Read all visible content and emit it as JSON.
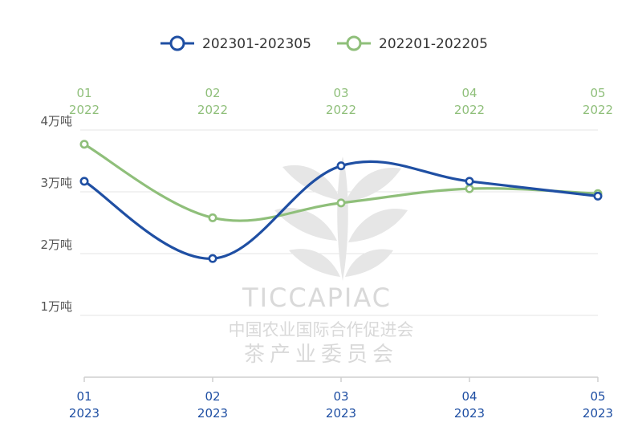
{
  "chart_data": {
    "type": "line",
    "x_bottom": [
      {
        "month": "01",
        "year": "2023"
      },
      {
        "month": "02",
        "year": "2023"
      },
      {
        "month": "03",
        "year": "2023"
      },
      {
        "month": "04",
        "year": "2023"
      },
      {
        "month": "05",
        "year": "2023"
      }
    ],
    "x_top": [
      {
        "month": "01",
        "year": "2022"
      },
      {
        "month": "02",
        "year": "2022"
      },
      {
        "month": "03",
        "year": "2022"
      },
      {
        "month": "04",
        "year": "2022"
      },
      {
        "month": "05",
        "year": "2022"
      }
    ],
    "y_ticks": [
      {
        "value": 1,
        "label": "1万吨"
      },
      {
        "value": 2,
        "label": "2万吨"
      },
      {
        "value": 3,
        "label": "3万吨"
      },
      {
        "value": 4,
        "label": "4万吨"
      }
    ],
    "ylim": [
      0,
      4
    ],
    "grid": "horizontal",
    "legend_position": "top-center",
    "series": [
      {
        "name": "202301-202305",
        "color": "#1f4fa3",
        "axis": "bottom",
        "values": [
          3.17,
          1.92,
          3.42,
          3.17,
          2.93
        ]
      },
      {
        "name": "202201-202205",
        "color": "#8fbf7a",
        "axis": "top",
        "values": [
          3.77,
          2.58,
          2.82,
          3.05,
          2.97
        ]
      }
    ]
  },
  "watermark": {
    "brand": "TICCAPIAC",
    "org_line1": "中国农业国际合作促进会",
    "org_line2": "茶产业委员会"
  }
}
